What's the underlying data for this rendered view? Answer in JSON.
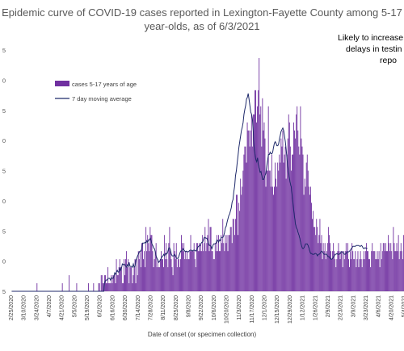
{
  "chart_data": {
    "type": "bar",
    "title_lines": [
      "Epidemic curve of COVID-19 cases reported in Lexington-Fayette County among 5-17",
      "year-olds, as of 6/3/2021"
    ],
    "annotation_lines": [
      "Likely to increase d",
      "delays in testin",
      "repo"
    ],
    "xlabel": "Date of onset (or specimen collection)",
    "ylabel": "",
    "y_tick_labels": [
      "5",
      "0",
      "5",
      "0",
      "5",
      "0",
      "5",
      "0",
      "5"
    ],
    "ylim": [
      0,
      30
    ],
    "grid": false,
    "legend_position": "top-left",
    "legend": [
      {
        "label": "cases 5-17 years of age",
        "kind": "bar"
      },
      {
        "label": "7 day moving average",
        "kind": "line"
      }
    ],
    "colors": {
      "bars": "#7030a0",
      "line": "#1f2a6b",
      "axis": "#d9d9d9"
    },
    "x_tick_labels": [
      "2/25/2020",
      "3/10/2020",
      "3/24/2020",
      "4/7/2020",
      "4/21/2020",
      "5/5/2020",
      "5/19/2020",
      "6/2/2020",
      "6/16/2020",
      "6/30/2020",
      "7/14/2020",
      "7/28/2020",
      "8/11/2020",
      "8/25/2020",
      "9/8/2020",
      "9/22/2020",
      "10/6/2020",
      "10/20/2020",
      "11/3/2020",
      "11/17/2020",
      "12/1/2020",
      "12/15/2020",
      "12/29/2020",
      "1/12/2021",
      "1/26/2021",
      "2/9/2021",
      "2/23/2021",
      "3/9/2021",
      "3/23/2021",
      "4/6/2021",
      "4/20/2021",
      "5/4/2021"
    ],
    "series": [
      {
        "name": "cases 5-17 years of age",
        "kind": "bar",
        "values": [
          0,
          0,
          0,
          0,
          0,
          0,
          0,
          0,
          0,
          0,
          0,
          0,
          0,
          0,
          0,
          0,
          0,
          0,
          0,
          0,
          0,
          0,
          0,
          0,
          0,
          0,
          0,
          0,
          0,
          0,
          1,
          0,
          0,
          0,
          0,
          0,
          0,
          0,
          0,
          0,
          0,
          0,
          0,
          0,
          0,
          0,
          0,
          0,
          0,
          0,
          0,
          0,
          0,
          0,
          0,
          0,
          0,
          0,
          0,
          0,
          1,
          0,
          0,
          0,
          0,
          0,
          0,
          0,
          2,
          0,
          0,
          0,
          0,
          0,
          0,
          0,
          0,
          1,
          0,
          0,
          0,
          0,
          0,
          0,
          0,
          0,
          0,
          0,
          0,
          0,
          0,
          1,
          0,
          0,
          0,
          0,
          0,
          1,
          0,
          0,
          0,
          0,
          0,
          1,
          1,
          0,
          2,
          2,
          1,
          1,
          2,
          2,
          1,
          1,
          3,
          1,
          1,
          1,
          2,
          1,
          2,
          2,
          2,
          1,
          4,
          2,
          2,
          3,
          4,
          3,
          3,
          1,
          1,
          4,
          2,
          4,
          5,
          3,
          4,
          1,
          3,
          3,
          3,
          1,
          2,
          3,
          4,
          1,
          4,
          2,
          5,
          4,
          5,
          3,
          6,
          6,
          4,
          5,
          3,
          8,
          5,
          7,
          6,
          5,
          8,
          7,
          7,
          5,
          3,
          4,
          5,
          6,
          3,
          4,
          3,
          3,
          4,
          5,
          4,
          4,
          3,
          7,
          4,
          6,
          4,
          3,
          6,
          8,
          5,
          4,
          3,
          2,
          6,
          5,
          4,
          6,
          3,
          4,
          4,
          3,
          4,
          7,
          6,
          5,
          6,
          4,
          5,
          4,
          5,
          4,
          4,
          5,
          7,
          5,
          5,
          5,
          6,
          4,
          3,
          6,
          6,
          5,
          6,
          5,
          6,
          5,
          7,
          5,
          6,
          8,
          5,
          6,
          7,
          9,
          5,
          8,
          8,
          5,
          5,
          4,
          4,
          6,
          5,
          7,
          5,
          7,
          5,
          5,
          7,
          6,
          9,
          6,
          5,
          7,
          6,
          7,
          5,
          7,
          7,
          8,
          8,
          6,
          9,
          9,
          7,
          9,
          12,
          12,
          7,
          11,
          10,
          14,
          12,
          13,
          15,
          17,
          18,
          18,
          16,
          21,
          20,
          20,
          18,
          20,
          22,
          18,
          22,
          22,
          25,
          25,
          21,
          23,
          25,
          29,
          22,
          23,
          18,
          24,
          20,
          21,
          19,
          13,
          15,
          15,
          23,
          15,
          15,
          13,
          17,
          13,
          12,
          13,
          16,
          14,
          13,
          16,
          15,
          17,
          16,
          19,
          18,
          20,
          16,
          17,
          18,
          14,
          17,
          19,
          22,
          21,
          18,
          15,
          17,
          17,
          21,
          20,
          19,
          22,
          23,
          20,
          18,
          17,
          23,
          19,
          18,
          17,
          12,
          14,
          13,
          16,
          17,
          15,
          13,
          12,
          13,
          11,
          9,
          10,
          8,
          8,
          7,
          9,
          8,
          6,
          7,
          9,
          6,
          7,
          4,
          6,
          5,
          6,
          4,
          5,
          6,
          8,
          7,
          6,
          5,
          4,
          5,
          6,
          5,
          4,
          3,
          4,
          5,
          6,
          5,
          4,
          5,
          5,
          3,
          5,
          4,
          5,
          6,
          5,
          6,
          4,
          3,
          5,
          4,
          6,
          5,
          4,
          4,
          5,
          3,
          4,
          5,
          3,
          4,
          5,
          4,
          3,
          4,
          5,
          4,
          5,
          6,
          5,
          5,
          4,
          4,
          3,
          5,
          6,
          5,
          5,
          5,
          4,
          4,
          5,
          4,
          5,
          3,
          6,
          4,
          5,
          6,
          6,
          5,
          6,
          5,
          5,
          7,
          6,
          5,
          6,
          5,
          4,
          8,
          6,
          5,
          5,
          6,
          5,
          7,
          4,
          5,
          6,
          5,
          4,
          7
        ]
      },
      {
        "name": "7 day moving average",
        "kind": "line",
        "values": [
          0,
          0,
          0,
          0,
          0,
          0,
          0,
          0,
          0,
          0,
          0,
          0,
          0,
          0,
          0,
          0,
          0,
          0,
          0,
          0,
          0,
          0,
          0,
          0,
          0,
          0,
          0,
          0,
          0,
          0,
          0,
          0,
          0,
          0,
          0,
          0,
          0,
          0,
          0,
          0,
          0,
          0,
          0,
          0,
          0,
          0,
          0,
          0,
          0,
          0,
          0,
          0,
          0,
          0,
          0,
          0,
          0,
          0,
          0,
          0,
          0,
          0,
          0,
          0,
          0,
          0,
          0,
          0,
          0,
          0,
          0,
          0,
          0,
          0,
          0,
          0,
          0,
          0,
          0,
          0,
          0,
          0,
          0,
          0,
          0,
          0,
          0,
          0,
          0,
          0,
          0,
          0,
          0,
          0,
          0,
          0,
          0,
          0,
          0,
          0,
          0,
          0,
          0,
          0,
          0,
          0,
          0,
          0,
          0,
          0,
          1.1,
          1.3,
          1.4,
          1.4,
          1.6,
          1.6,
          1.6,
          1.4,
          1.7,
          1.6,
          1.6,
          1.9,
          2.3,
          2.1,
          2.4,
          2.6,
          2.4,
          2.4,
          2.9,
          2.6,
          2.9,
          3.4,
          3.3,
          3.4,
          3.3,
          3.1,
          3.0,
          3.3,
          3.1,
          3.6,
          3.1,
          3.1,
          3.1,
          3.0,
          3.4,
          3.0,
          3.1,
          3.9,
          4.1,
          4.4,
          4.6,
          4.9,
          5.0,
          5.0,
          5.3,
          6.0,
          6.0,
          6.0,
          6.1,
          6.0,
          6.3,
          6.1,
          6.4,
          6.4,
          6.6,
          6.3,
          5.9,
          5.7,
          5.4,
          5.3,
          4.9,
          4.4,
          4.1,
          3.9,
          3.6,
          3.7,
          3.9,
          4.1,
          4.3,
          4.4,
          4.6,
          4.4,
          4.7,
          4.6,
          4.7,
          5.0,
          5.4,
          5.4,
          5.1,
          4.6,
          4.4,
          4.4,
          4.4,
          4.6,
          4.4,
          4.1,
          4.1,
          4.1,
          4.4,
          4.7,
          5.0,
          5.0,
          5.1,
          5.3,
          5.1,
          5.0,
          4.9,
          5.0,
          4.9,
          4.9,
          5.0,
          5.1,
          5.1,
          5.1,
          5.0,
          5.1,
          5.1,
          5.1,
          5.0,
          5.1,
          5.4,
          5.6,
          5.6,
          5.7,
          5.9,
          6.1,
          6.1,
          6.4,
          6.7,
          6.7,
          6.6,
          6.6,
          6.3,
          6.0,
          5.7,
          5.7,
          5.6,
          5.3,
          5.6,
          5.9,
          5.9,
          5.9,
          6.0,
          6.4,
          6.3,
          6.1,
          6.4,
          6.3,
          6.7,
          6.7,
          6.7,
          6.9,
          7.3,
          7.9,
          8.1,
          8.6,
          9.0,
          9.4,
          9.6,
          10.0,
          10.4,
          11.1,
          11.4,
          12.4,
          13.1,
          14.4,
          15.0,
          16.0,
          16.9,
          17.9,
          18.6,
          19.3,
          20.0,
          20.4,
          21.0,
          22.0,
          22.6,
          23.1,
          23.9,
          24.1,
          24.6,
          23.9,
          23.1,
          22.3,
          22.0,
          21.4,
          19.9,
          18.0,
          17.1,
          16.4,
          16.1,
          16.6,
          15.7,
          15.3,
          14.8,
          14.9,
          14.4,
          13.9,
          13.9,
          14.1,
          14.4,
          14.7,
          15.6,
          16.3,
          17.0,
          17.0,
          17.3,
          17.1,
          17.1,
          17.3,
          17.9,
          18.4,
          18.6,
          18.4,
          18.1,
          18.1,
          18.3,
          18.9,
          19.4,
          19.9,
          20.1,
          20.3,
          20.0,
          19.3,
          18.6,
          17.6,
          16.4,
          15.4,
          14.7,
          14.0,
          13.4,
          13.0,
          12.0,
          11.0,
          10.0,
          9.1,
          8.3,
          7.9,
          7.7,
          7.3,
          7.0,
          6.6,
          6.1,
          5.7,
          5.4,
          5.3,
          5.4,
          5.6,
          5.9,
          5.9,
          5.9,
          5.7,
          5.4,
          5.0,
          4.7,
          4.7,
          4.6,
          4.6,
          4.6,
          4.7,
          4.7,
          4.6,
          4.4,
          4.6,
          4.6,
          4.7,
          4.9,
          5.0,
          4.9,
          4.7,
          4.6,
          4.6,
          4.6,
          4.6,
          4.4,
          4.3,
          4.3,
          4.1,
          4.0,
          4.0,
          4.1,
          4.3,
          4.4,
          4.6,
          4.6,
          4.7,
          4.6,
          4.6,
          4.6,
          4.7,
          4.9,
          4.9,
          4.9,
          4.7,
          4.6,
          4.6,
          4.7,
          4.9,
          4.9,
          4.9,
          5.0,
          5.1,
          5.3,
          5.4,
          5.6,
          5.6,
          5.6,
          5.6,
          5.7,
          5.7,
          5.7,
          5.7,
          5.6,
          5.6,
          5.7,
          5.6,
          5.4,
          5.3,
          5.4,
          5.4,
          5.3,
          5.4
        ]
      }
    ]
  }
}
